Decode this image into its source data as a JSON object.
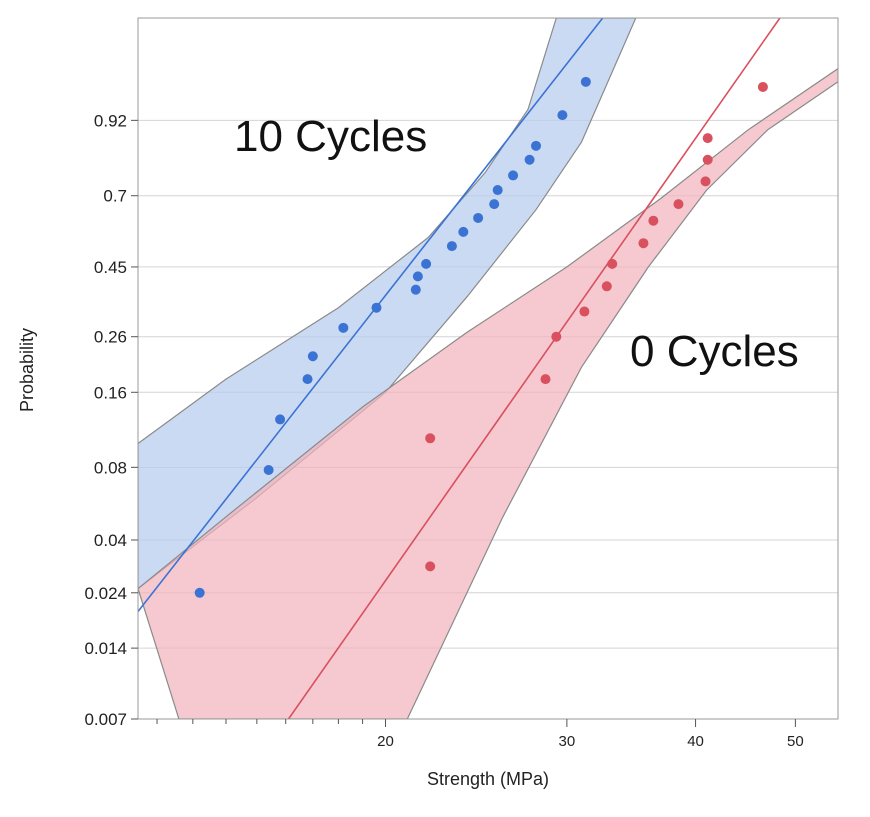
{
  "chart_data": {
    "type": "scatter",
    "xlabel": "Strength (MPa)",
    "ylabel": "Probability",
    "x_scale": "log",
    "y_scale": "weibull-probability",
    "xlim": [
      11.5,
      55
    ],
    "ylim": [
      0.007,
      0.999
    ],
    "x_ticks": [
      20,
      30,
      40,
      50
    ],
    "y_ticks": [
      0.007,
      0.014,
      0.024,
      0.04,
      0.08,
      0.16,
      0.26,
      0.45,
      0.7,
      0.92
    ],
    "y_tick_labels": [
      "0.007",
      "0.014",
      "0.024",
      "0.04",
      "0.08",
      "0.16",
      "0.26",
      "0.45",
      "0.7",
      "0.92"
    ],
    "grid": "horizontal",
    "annotations": [
      {
        "text": "10 Cycles",
        "series": "10 Cycles"
      },
      {
        "text": "0 Cycles",
        "series": "0 Cycles"
      }
    ],
    "series": [
      {
        "key": "10 Cycles",
        "color": "#3b73d4",
        "band_color": "#b7ccee",
        "points": [
          {
            "x": 13.2,
            "y": 0.024
          },
          {
            "x": 15.4,
            "y": 0.078
          },
          {
            "x": 15.8,
            "y": 0.125
          },
          {
            "x": 16.8,
            "y": 0.18
          },
          {
            "x": 17.0,
            "y": 0.22
          },
          {
            "x": 18.2,
            "y": 0.28
          },
          {
            "x": 19.6,
            "y": 0.33
          },
          {
            "x": 21.4,
            "y": 0.38
          },
          {
            "x": 21.5,
            "y": 0.42
          },
          {
            "x": 21.9,
            "y": 0.46
          },
          {
            "x": 23.2,
            "y": 0.52
          },
          {
            "x": 23.8,
            "y": 0.57
          },
          {
            "x": 24.6,
            "y": 0.62
          },
          {
            "x": 25.5,
            "y": 0.67
          },
          {
            "x": 25.7,
            "y": 0.72
          },
          {
            "x": 26.6,
            "y": 0.77
          },
          {
            "x": 27.6,
            "y": 0.82
          },
          {
            "x": 28.0,
            "y": 0.86
          },
          {
            "x": 29.7,
            "y": 0.93
          },
          {
            "x": 31.3,
            "y": 0.975
          }
        ],
        "fit": {
          "x_at_ymin": 11.5,
          "y_at_xmin": 0.02,
          "x_at_ymax": 32.5
        },
        "band_upper": [
          [
            11.5,
            0.1
          ],
          [
            14,
            0.18
          ],
          [
            18,
            0.33
          ],
          [
            22,
            0.55
          ],
          [
            25,
            0.78
          ],
          [
            27.5,
            0.94
          ],
          [
            29.3,
            0.999
          ]
        ],
        "band_lower": [
          [
            11.5,
            0.025
          ],
          [
            15,
            0.06
          ],
          [
            20,
            0.16
          ],
          [
            24,
            0.36
          ],
          [
            28,
            0.65
          ],
          [
            31,
            0.87
          ],
          [
            35,
            0.999
          ]
        ]
      },
      {
        "key": "0 Cycles",
        "color": "#d9505e",
        "band_color": "#f1b4bd",
        "points": [
          {
            "x": 22.1,
            "y": 0.031
          },
          {
            "x": 22.1,
            "y": 0.105
          },
          {
            "x": 28.6,
            "y": 0.18
          },
          {
            "x": 29.3,
            "y": 0.26
          },
          {
            "x": 31.2,
            "y": 0.32
          },
          {
            "x": 32.8,
            "y": 0.39
          },
          {
            "x": 33.2,
            "y": 0.46
          },
          {
            "x": 35.6,
            "y": 0.53
          },
          {
            "x": 36.4,
            "y": 0.61
          },
          {
            "x": 38.5,
            "y": 0.67
          },
          {
            "x": 40.9,
            "y": 0.75
          },
          {
            "x": 41.1,
            "y": 0.82
          },
          {
            "x": 41.1,
            "y": 0.88
          },
          {
            "x": 46.5,
            "y": 0.97
          }
        ],
        "fit": {
          "x_at_ymin": 16.1,
          "x_at_ymax": 48.3
        },
        "band_upper": [
          [
            11.5,
            0.025
          ],
          [
            14,
            0.05
          ],
          [
            19,
            0.14
          ],
          [
            24,
            0.27
          ],
          [
            30,
            0.45
          ],
          [
            37,
            0.69
          ],
          [
            45,
            0.9
          ],
          [
            55,
            0.985
          ]
        ],
        "band_lower": [
          [
            12.6,
            0.007
          ],
          [
            21,
            0.007
          ],
          [
            26,
            0.05
          ],
          [
            31,
            0.2
          ],
          [
            36,
            0.45
          ],
          [
            41,
            0.72
          ],
          [
            47,
            0.9
          ],
          [
            55,
            0.975
          ]
        ]
      }
    ]
  }
}
